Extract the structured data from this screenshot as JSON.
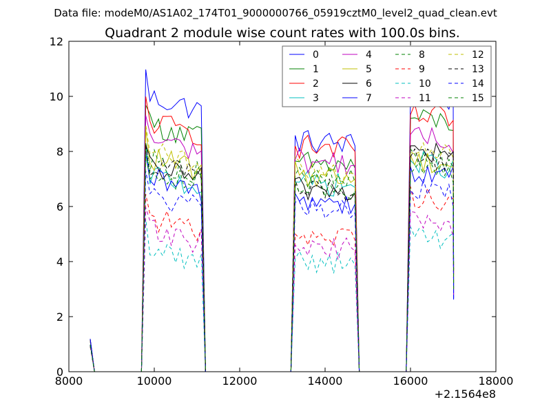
{
  "chart_data": {
    "type": "line",
    "suptitle": "Data file: modeM0/AS1A02_174T01_9000000766_05919cztM0_level2_quad_clean.evt",
    "title": "Quadrant 2 module wise count rates with 100.0s bins.",
    "xlabel": "",
    "ylabel": "",
    "x_offset_label": "+2.1564e8",
    "xlim": [
      8000,
      18000
    ],
    "ylim": [
      0,
      12
    ],
    "x_ticks": [
      8000,
      10000,
      12000,
      14000,
      16000,
      18000
    ],
    "y_ticks": [
      0,
      2,
      4,
      6,
      8,
      10,
      12
    ],
    "x_tick_labels": [
      "8000",
      "10000",
      "12000",
      "14000",
      "16000",
      "18000"
    ],
    "y_tick_labels": [
      "0",
      "2",
      "4",
      "6",
      "8",
      "10",
      "12"
    ],
    "grid": false,
    "legend_position": "top-right",
    "legend_columns": 4,
    "segments": [
      {
        "start": 9800,
        "end": 11100
      },
      {
        "start": 13300,
        "end": 14700
      },
      {
        "start": 16000,
        "end": 17000
      }
    ],
    "series": [
      {
        "name": "0",
        "color": "#0000ff",
        "dash": "solid",
        "levels": [
          10.0,
          8.4,
          10.0
        ]
      },
      {
        "name": "1",
        "color": "#008000",
        "dash": "solid",
        "levels": [
          9.0,
          7.6,
          9.2
        ]
      },
      {
        "name": "2",
        "color": "#ff0000",
        "dash": "solid",
        "levels": [
          9.1,
          8.2,
          9.3
        ]
      },
      {
        "name": "3",
        "color": "#00bfbf",
        "dash": "solid",
        "levels": [
          7.2,
          6.9,
          7.6
        ]
      },
      {
        "name": "4",
        "color": "#bf00bf",
        "dash": "solid",
        "levels": [
          8.5,
          7.7,
          8.5
        ]
      },
      {
        "name": "5",
        "color": "#bfbf00",
        "dash": "solid",
        "levels": [
          7.8,
          7.2,
          7.7
        ]
      },
      {
        "name": "6",
        "color": "#000000",
        "dash": "solid",
        "levels": [
          7.5,
          6.7,
          8.0
        ]
      },
      {
        "name": "7",
        "color": "#0000ff",
        "dash": "solid",
        "levels": [
          7.0,
          6.3,
          7.2
        ]
      },
      {
        "name": "8",
        "color": "#008000",
        "dash": "dashed",
        "levels": [
          7.7,
          7.1,
          7.8
        ]
      },
      {
        "name": "9",
        "color": "#ff0000",
        "dash": "dashed",
        "levels": [
          5.6,
          5.0,
          6.4
        ]
      },
      {
        "name": "10",
        "color": "#00bfbf",
        "dash": "dashed",
        "levels": [
          4.5,
          4.1,
          4.9
        ]
      },
      {
        "name": "11",
        "color": "#bf00bf",
        "dash": "dashed",
        "levels": [
          5.2,
          4.6,
          5.4
        ]
      },
      {
        "name": "12",
        "color": "#bfbf00",
        "dash": "dashed",
        "levels": [
          8.0,
          7.4,
          8.0
        ]
      },
      {
        "name": "13",
        "color": "#000000",
        "dash": "dashed",
        "levels": [
          7.6,
          6.7,
          7.8
        ]
      },
      {
        "name": "14",
        "color": "#0000ff",
        "dash": "dashed",
        "levels": [
          6.4,
          6.0,
          6.6
        ]
      },
      {
        "name": "15",
        "color": "#008000",
        "dash": "dashed",
        "levels": [
          7.3,
          6.8,
          7.2
        ]
      }
    ]
  }
}
